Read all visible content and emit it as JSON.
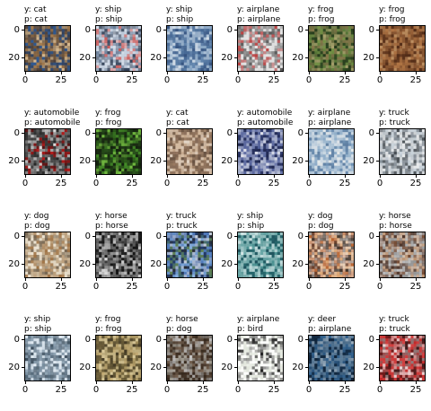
{
  "chart_data": {
    "type": "image-grid",
    "rows": 4,
    "cols": 6,
    "yticks": [
      "0",
      "20"
    ],
    "xticks": [
      "0",
      "25"
    ],
    "panels": [
      {
        "y": "cat",
        "p": "cat",
        "palette": [
          "#3a2f2a",
          "#b88a55",
          "#e8c89a",
          "#6d5d52",
          "#2f5fa0"
        ]
      },
      {
        "y": "ship",
        "p": "ship",
        "palette": [
          "#e9eef4",
          "#1d2c45",
          "#b7c4d6",
          "#5d728f",
          "#c64a48"
        ]
      },
      {
        "y": "ship",
        "p": "ship",
        "palette": [
          "#7da0c3",
          "#2d4a78",
          "#dbe2ea",
          "#9eb2c9",
          "#40628f"
        ]
      },
      {
        "y": "airplane",
        "p": "airplane",
        "palette": [
          "#d9d9d9",
          "#4d4d4d",
          "#b62f2f",
          "#7d7d7d",
          "#e5e5e5"
        ]
      },
      {
        "y": "frog",
        "p": "frog",
        "palette": [
          "#3c5c2c",
          "#7d9a4a",
          "#b6aa75",
          "#24361a",
          "#8f7b4f"
        ]
      },
      {
        "y": "frog",
        "p": "frog",
        "palette": [
          "#7a4a2a",
          "#b67a48",
          "#4f2a16",
          "#c79a6a",
          "#8c5a34"
        ]
      },
      {
        "y": "automobile",
        "p": "automobile",
        "palette": [
          "#121212",
          "#f2f2f2",
          "#9b9b9b",
          "#c61e1e",
          "#4a4a4a"
        ]
      },
      {
        "y": "frog",
        "p": "frog",
        "palette": [
          "#0e1a0b",
          "#4a9a2b",
          "#7fcf47",
          "#2f5a1f",
          "#1d2e15"
        ]
      },
      {
        "y": "cat",
        "p": "cat",
        "palette": [
          "#b08e70",
          "#d8c1a8",
          "#806654",
          "#e7dccf",
          "#5e4a3c"
        ]
      },
      {
        "y": "automobile",
        "p": "automobile",
        "palette": [
          "#3c4b88",
          "#eef0f5",
          "#7682b2",
          "#1e254a",
          "#bfc6db"
        ]
      },
      {
        "y": "airplane",
        "p": "airplane",
        "palette": [
          "#7ea1c3",
          "#dfe6ea",
          "#a8bfd2",
          "#5b7b9e",
          "#f2f2ef"
        ]
      },
      {
        "y": "truck",
        "p": "truck",
        "palette": [
          "#b3b8bc",
          "#eef0f1",
          "#7d8791",
          "#3b4248",
          "#cdd7df"
        ]
      },
      {
        "y": "dog",
        "p": "dog",
        "palette": [
          "#d5c8b0",
          "#9a6a3a",
          "#efe6d6",
          "#6b5a46",
          "#b89a76"
        ]
      },
      {
        "y": "horse",
        "p": "horse",
        "palette": [
          "#0b0b0b",
          "#f0f0f0",
          "#7a7a7a",
          "#262626",
          "#b9b9b9"
        ]
      },
      {
        "y": "truck",
        "p": "truck",
        "palette": [
          "#1f4b9a",
          "#9ac1e8",
          "#6b8b47",
          "#2a2a2a",
          "#d7dbe0"
        ]
      },
      {
        "y": "ship",
        "p": "ship",
        "palette": [
          "#2c7a7a",
          "#e6f2f2",
          "#1e4e5a",
          "#7bb3b3",
          "#c4dede"
        ]
      },
      {
        "y": "dog",
        "p": "dog",
        "palette": [
          "#f1f1f1",
          "#b1541b",
          "#5a2a12",
          "#d79a62",
          "#2a1a0f"
        ]
      },
      {
        "y": "horse",
        "p": "horse",
        "palette": [
          "#dadbdc",
          "#6a3c22",
          "#3b1f12",
          "#b88a64",
          "#8d8d8d"
        ]
      },
      {
        "y": "ship",
        "p": "ship",
        "palette": [
          "#b9c9d6",
          "#2e3f4d",
          "#6e8496",
          "#e6eef5",
          "#4a5f71"
        ]
      },
      {
        "y": "frog",
        "p": "frog",
        "palette": [
          "#8b7a4b",
          "#cab27b",
          "#5e5233",
          "#e7d7a8",
          "#3b3321"
        ]
      },
      {
        "y": "horse",
        "p": "dog",
        "palette": [
          "#2a1f16",
          "#7f6a58",
          "#b5b0a6",
          "#4b3a2c",
          "#d7d7d7"
        ]
      },
      {
        "y": "airplane",
        "p": "bird",
        "palette": [
          "#f3f5ef",
          "#0f0f0f",
          "#dfe4da",
          "#8b8b8b",
          "#ffffff"
        ]
      },
      {
        "y": "deer",
        "p": "airplane",
        "palette": [
          "#1d3e60",
          "#3a6c99",
          "#6d8ea8",
          "#0e2033",
          "#a8b9c7"
        ]
      },
      {
        "y": "truck",
        "p": "truck",
        "palette": [
          "#b11818",
          "#f2f2f2",
          "#8a8a8a",
          "#1f1f1f",
          "#d84a4a"
        ]
      }
    ]
  }
}
